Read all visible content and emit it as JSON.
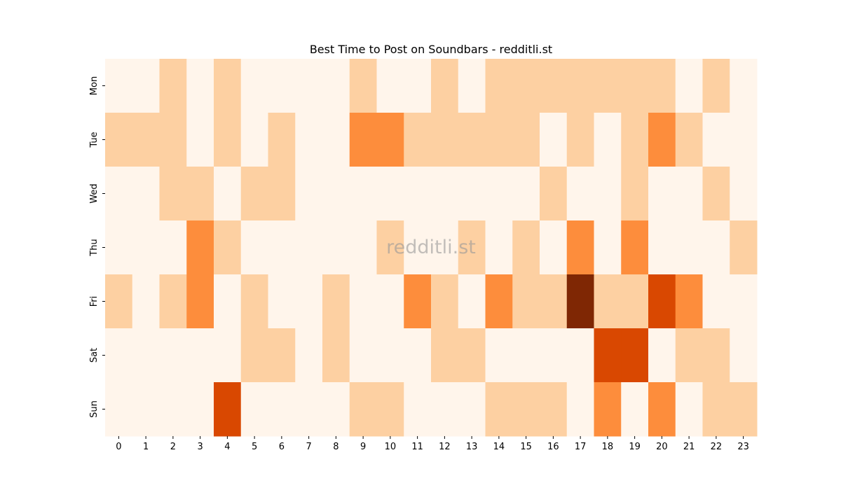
{
  "chart_data": {
    "type": "heatmap",
    "title": "Best Time to Post on Soundbars - redditli.st",
    "watermark": "redditli.st",
    "x_categories": [
      "0",
      "1",
      "2",
      "3",
      "4",
      "5",
      "6",
      "7",
      "8",
      "9",
      "10",
      "11",
      "12",
      "13",
      "14",
      "15",
      "16",
      "17",
      "18",
      "19",
      "20",
      "21",
      "22",
      "23"
    ],
    "y_categories": [
      "Mon",
      "Tue",
      "Wed",
      "Thu",
      "Fri",
      "Sat",
      "Sun"
    ],
    "value_scale": "relative intensity level 0 (lowest) to 4 (highest)",
    "values": [
      [
        0,
        0,
        1,
        0,
        1,
        0,
        0,
        0,
        0,
        1,
        0,
        0,
        1,
        0,
        1,
        1,
        1,
        1,
        1,
        1,
        1,
        0,
        1,
        0
      ],
      [
        1,
        1,
        1,
        0,
        1,
        0,
        1,
        0,
        0,
        2,
        2,
        1,
        1,
        1,
        1,
        1,
        0,
        1,
        0,
        1,
        2,
        1,
        0,
        0
      ],
      [
        0,
        0,
        1,
        1,
        0,
        1,
        1,
        0,
        0,
        0,
        0,
        0,
        0,
        0,
        0,
        0,
        1,
        0,
        0,
        1,
        0,
        0,
        1,
        0
      ],
      [
        0,
        0,
        0,
        2,
        1,
        0,
        0,
        0,
        0,
        0,
        1,
        0,
        0,
        1,
        0,
        1,
        0,
        2,
        0,
        2,
        0,
        0,
        0,
        1
      ],
      [
        1,
        0,
        1,
        2,
        0,
        1,
        0,
        0,
        1,
        0,
        0,
        2,
        1,
        0,
        2,
        1,
        1,
        4,
        1,
        1,
        3,
        2,
        0,
        0
      ],
      [
        0,
        0,
        0,
        0,
        0,
        1,
        1,
        0,
        1,
        0,
        0,
        0,
        1,
        1,
        0,
        0,
        0,
        0,
        3,
        3,
        0,
        1,
        1,
        0
      ],
      [
        0,
        0,
        0,
        0,
        3,
        0,
        0,
        0,
        0,
        1,
        1,
        0,
        0,
        0,
        1,
        1,
        1,
        0,
        2,
        0,
        2,
        0,
        1,
        1
      ]
    ],
    "colormap": [
      "#fff5eb",
      "#fdd0a2",
      "#fd8d3c",
      "#d94801",
      "#7f2704"
    ],
    "grid": false,
    "colorbar": false
  }
}
